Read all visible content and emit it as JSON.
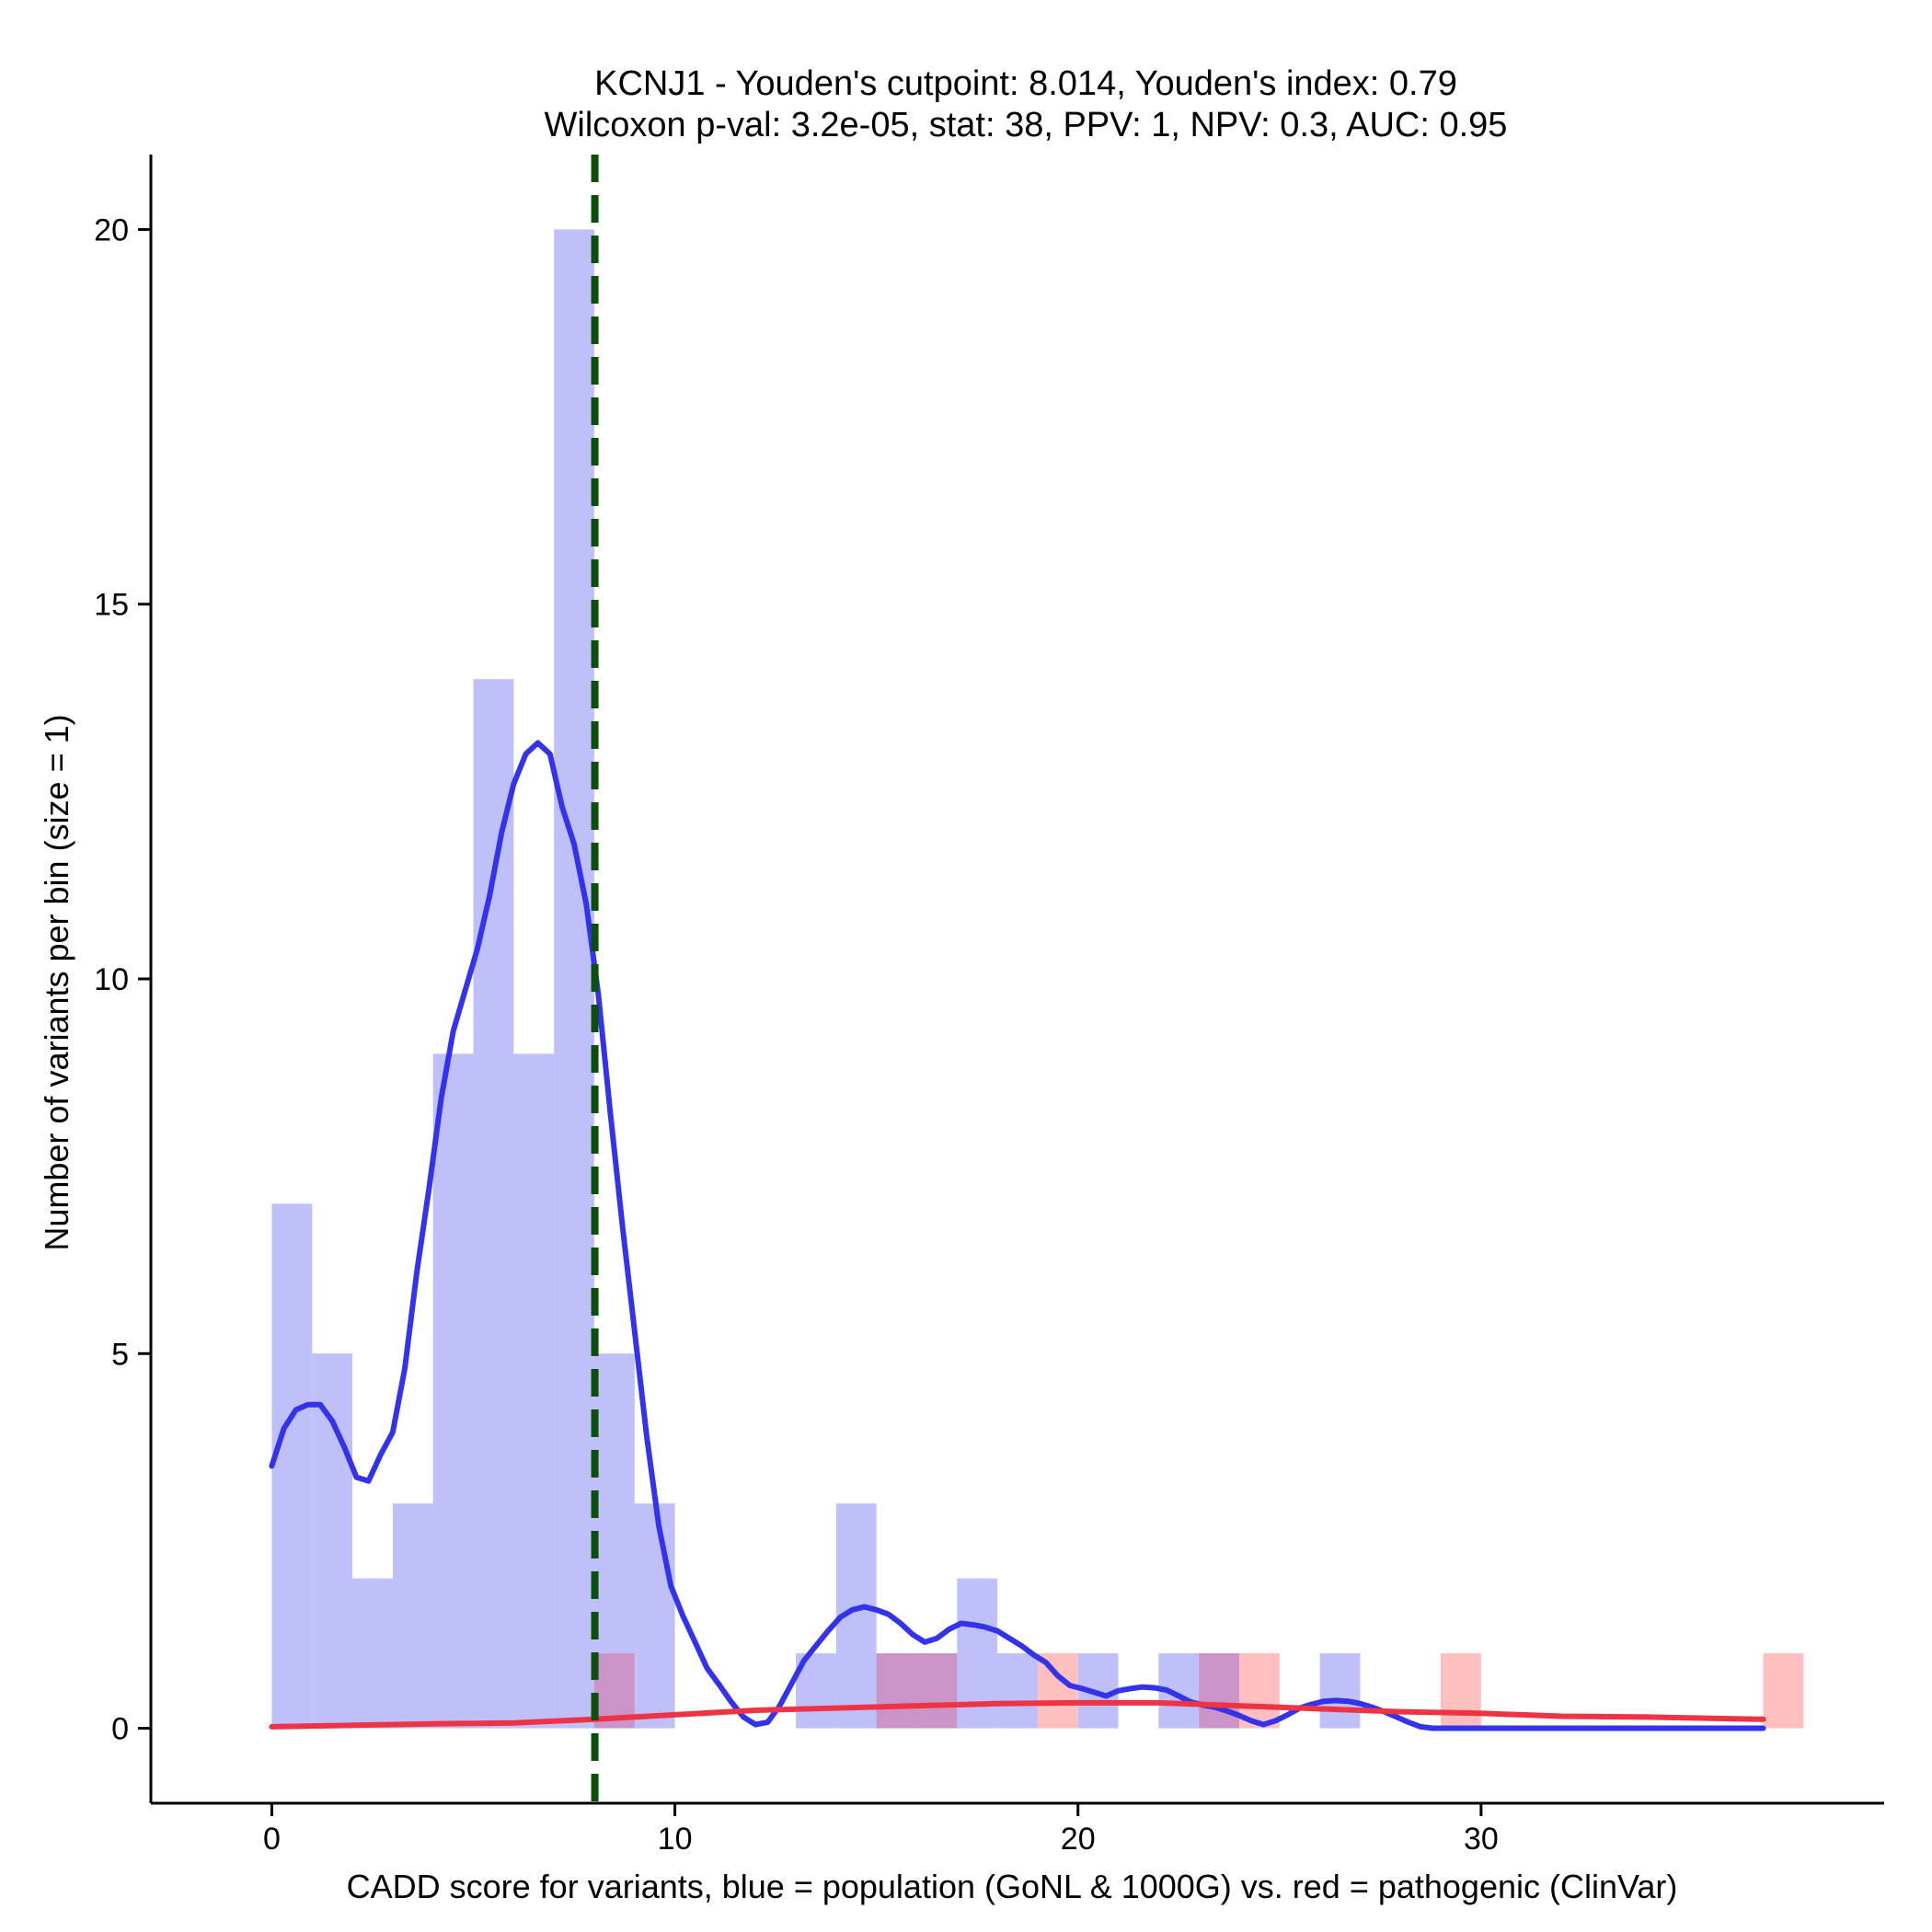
{
  "chart_data": {
    "type": "histogram",
    "title_line1": "KCNJ1 - Youden's cutpoint: 8.014, Youden's index: 0.79",
    "title_line2": "Wilcoxon p-val: 3.2e-05, stat: 38, PPV: 1, NPV: 0.3, AUC: 0.95",
    "xlabel": "CADD score for variants, blue = population (GoNL & 1000G) vs. red = pathogenic (ClinVar)",
    "ylabel": "Number of variants per bin (size = 1)",
    "xlim": [
      -3,
      40
    ],
    "ylim": [
      -1,
      21
    ],
    "x_ticks": [
      0,
      10,
      20,
      30
    ],
    "x_tick_labels": [
      "0",
      "10",
      "20",
      "30"
    ],
    "y_ticks": [
      0,
      5,
      10,
      15,
      20
    ],
    "y_tick_labels": [
      "0",
      "5",
      "10",
      "15",
      "20"
    ],
    "bin_width": 1,
    "cutpoint": 8.014,
    "colors": {
      "population_bar": "#bfbffa",
      "pathogenic_bar": "#ffbfbf",
      "overlap_bar": "#cc94c6",
      "population_density": "#3333ee",
      "pathogenic_density": "#ee3344",
      "cutpoint_line": "#0a4f0a"
    },
    "series": [
      {
        "name": "population (GoNL & 1000G)",
        "bins": [
          {
            "x0": 0,
            "count": 7
          },
          {
            "x0": 1,
            "count": 5
          },
          {
            "x0": 2,
            "count": 2
          },
          {
            "x0": 3,
            "count": 3
          },
          {
            "x0": 4,
            "count": 9
          },
          {
            "x0": 5,
            "count": 14
          },
          {
            "x0": 6,
            "count": 9
          },
          {
            "x0": 7,
            "count": 20
          },
          {
            "x0": 8,
            "count": 5
          },
          {
            "x0": 9,
            "count": 3
          },
          {
            "x0": 13,
            "count": 1
          },
          {
            "x0": 14,
            "count": 3
          },
          {
            "x0": 15,
            "count": 1
          },
          {
            "x0": 16,
            "count": 1
          },
          {
            "x0": 17,
            "count": 2
          },
          {
            "x0": 18,
            "count": 1
          },
          {
            "x0": 20,
            "count": 1
          },
          {
            "x0": 22,
            "count": 1
          },
          {
            "x0": 23,
            "count": 1
          },
          {
            "x0": 26,
            "count": 1
          }
        ],
        "density_curve": [
          [
            0,
            3.5
          ],
          [
            0.3,
            4.0
          ],
          [
            0.6,
            4.25
          ],
          [
            0.9,
            4.32
          ],
          [
            1.2,
            4.32
          ],
          [
            1.5,
            4.1
          ],
          [
            1.8,
            3.75
          ],
          [
            2.1,
            3.35
          ],
          [
            2.4,
            3.3
          ],
          [
            2.7,
            3.65
          ],
          [
            3.0,
            3.95
          ],
          [
            3.3,
            4.8
          ],
          [
            3.6,
            6.1
          ],
          [
            3.9,
            7.2
          ],
          [
            4.2,
            8.4
          ],
          [
            4.5,
            9.3
          ],
          [
            4.8,
            9.85
          ],
          [
            5.1,
            10.4
          ],
          [
            5.4,
            11.1
          ],
          [
            5.7,
            11.95
          ],
          [
            6.0,
            12.6
          ],
          [
            6.3,
            13.0
          ],
          [
            6.6,
            13.15
          ],
          [
            6.9,
            13.0
          ],
          [
            7.2,
            12.3
          ],
          [
            7.5,
            11.8
          ],
          [
            7.8,
            11.0
          ],
          [
            8.1,
            9.8
          ],
          [
            8.4,
            8.2
          ],
          [
            8.7,
            6.7
          ],
          [
            9.0,
            5.3
          ],
          [
            9.3,
            3.9
          ],
          [
            9.6,
            2.7
          ],
          [
            9.9,
            1.9
          ],
          [
            10.2,
            1.5
          ],
          [
            10.5,
            1.15
          ],
          [
            10.8,
            0.8
          ],
          [
            11.1,
            0.58
          ],
          [
            11.4,
            0.35
          ],
          [
            11.7,
            0.15
          ],
          [
            12.0,
            0.05
          ],
          [
            12.3,
            0.08
          ],
          [
            12.6,
            0.3
          ],
          [
            12.9,
            0.6
          ],
          [
            13.2,
            0.9
          ],
          [
            13.5,
            1.1
          ],
          [
            13.8,
            1.3
          ],
          [
            14.1,
            1.48
          ],
          [
            14.4,
            1.58
          ],
          [
            14.7,
            1.62
          ],
          [
            15.0,
            1.58
          ],
          [
            15.3,
            1.52
          ],
          [
            15.6,
            1.4
          ],
          [
            15.9,
            1.25
          ],
          [
            16.2,
            1.15
          ],
          [
            16.5,
            1.2
          ],
          [
            16.8,
            1.32
          ],
          [
            17.1,
            1.4
          ],
          [
            17.4,
            1.38
          ],
          [
            17.7,
            1.35
          ],
          [
            18.0,
            1.3
          ],
          [
            18.3,
            1.2
          ],
          [
            18.6,
            1.1
          ],
          [
            18.9,
            0.98
          ],
          [
            19.2,
            0.88
          ],
          [
            19.5,
            0.7
          ],
          [
            19.8,
            0.57
          ],
          [
            20.1,
            0.53
          ],
          [
            20.4,
            0.48
          ],
          [
            20.7,
            0.43
          ],
          [
            21.0,
            0.5
          ],
          [
            21.3,
            0.53
          ],
          [
            21.6,
            0.55
          ],
          [
            21.9,
            0.54
          ],
          [
            22.2,
            0.51
          ],
          [
            22.5,
            0.43
          ],
          [
            22.8,
            0.35
          ],
          [
            23.1,
            0.31
          ],
          [
            23.4,
            0.28
          ],
          [
            23.7,
            0.23
          ],
          [
            24.0,
            0.17
          ],
          [
            24.3,
            0.1
          ],
          [
            24.6,
            0.05
          ],
          [
            24.9,
            0.1
          ],
          [
            25.2,
            0.18
          ],
          [
            25.5,
            0.27
          ],
          [
            25.8,
            0.32
          ],
          [
            26.1,
            0.36
          ],
          [
            26.4,
            0.37
          ],
          [
            26.7,
            0.36
          ],
          [
            27.0,
            0.33
          ],
          [
            27.3,
            0.28
          ],
          [
            27.6,
            0.22
          ],
          [
            27.9,
            0.15
          ],
          [
            28.2,
            0.08
          ],
          [
            28.5,
            0.02
          ],
          [
            28.8,
            0.0
          ],
          [
            30,
            0.0
          ],
          [
            32,
            0.0
          ],
          [
            34,
            0.0
          ],
          [
            37,
            0.0
          ]
        ]
      },
      {
        "name": "pathogenic (ClinVar)",
        "bins": [
          {
            "x0": 8,
            "count": 1
          },
          {
            "x0": 15,
            "count": 1
          },
          {
            "x0": 16,
            "count": 1
          },
          {
            "x0": 19,
            "count": 1
          },
          {
            "x0": 23,
            "count": 1
          },
          {
            "x0": 24,
            "count": 1
          },
          {
            "x0": 29,
            "count": 1
          },
          {
            "x0": 37,
            "count": 1
          }
        ],
        "density_curve": [
          [
            0,
            0.02
          ],
          [
            2,
            0.04
          ],
          [
            4,
            0.06
          ],
          [
            6,
            0.07
          ],
          [
            8,
            0.12
          ],
          [
            10,
            0.18
          ],
          [
            12,
            0.24
          ],
          [
            14,
            0.27
          ],
          [
            16,
            0.3
          ],
          [
            18,
            0.33
          ],
          [
            20,
            0.34
          ],
          [
            22,
            0.34
          ],
          [
            24,
            0.3
          ],
          [
            26,
            0.26
          ],
          [
            28,
            0.22
          ],
          [
            30,
            0.2
          ],
          [
            32,
            0.16
          ],
          [
            34,
            0.15
          ],
          [
            36,
            0.13
          ],
          [
            37,
            0.12
          ]
        ]
      }
    ]
  }
}
